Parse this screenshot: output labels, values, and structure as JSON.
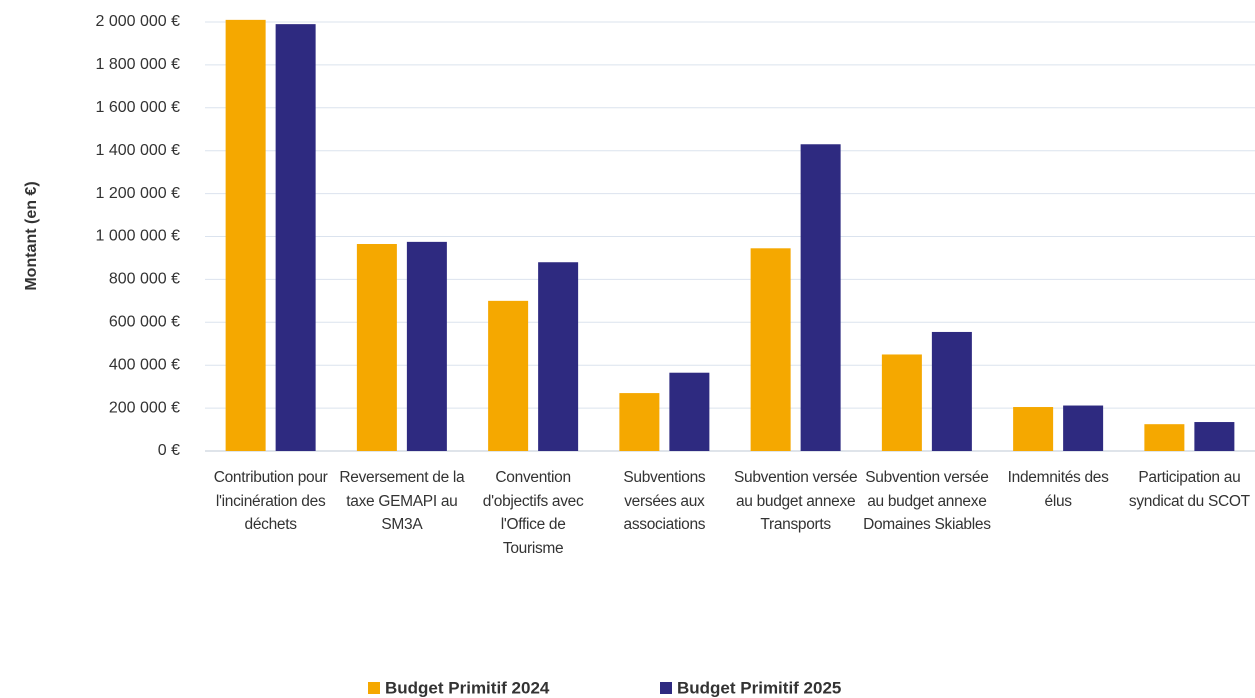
{
  "chart_data": {
    "type": "bar",
    "y_axis_label": "Montant (en €)",
    "categories": [
      "Contribution pour l'incinération des déchets",
      "Reversement de la taxe GEMAPI au SM3A",
      "Convention d'objectifs avec l'Office de Tourisme",
      "Subventions versées aux associations",
      "Subvention versée au budget annexe Transports",
      "Subvention versée au budget annexe Domaines Skiables",
      "Indemnités des élus",
      "Participation au syndicat du SCOT"
    ],
    "series": [
      {
        "name": "Budget Primitif 2024",
        "color": "#F5A800",
        "values": [
          2010000,
          965000,
          700000,
          270000,
          945000,
          450000,
          205000,
          125000
        ]
      },
      {
        "name": "Budget Primitif 2025",
        "color": "#2E2A80",
        "values": [
          1990000,
          975000,
          880000,
          365000,
          1430000,
          555000,
          212000,
          135000
        ]
      }
    ],
    "ylim": [
      0,
      2000000
    ],
    "yticks": [
      {
        "value": 0,
        "label": "0 €"
      },
      {
        "value": 200000,
        "label": "200 000 €"
      },
      {
        "value": 400000,
        "label": "400 000 €"
      },
      {
        "value": 600000,
        "label": "600 000 €"
      },
      {
        "value": 800000,
        "label": "800 000 €"
      },
      {
        "value": 1000000,
        "label": "1 000 000 €"
      },
      {
        "value": 1200000,
        "label": "1 200 000 €"
      },
      {
        "value": 1400000,
        "label": "1 400 000 €"
      },
      {
        "value": 1600000,
        "label": "1 600 000 €"
      },
      {
        "value": 1800000,
        "label": "1 800 000 €"
      },
      {
        "value": 2000000,
        "label": "2 000 000 €"
      }
    ],
    "grid": true,
    "legend": "bottom"
  }
}
